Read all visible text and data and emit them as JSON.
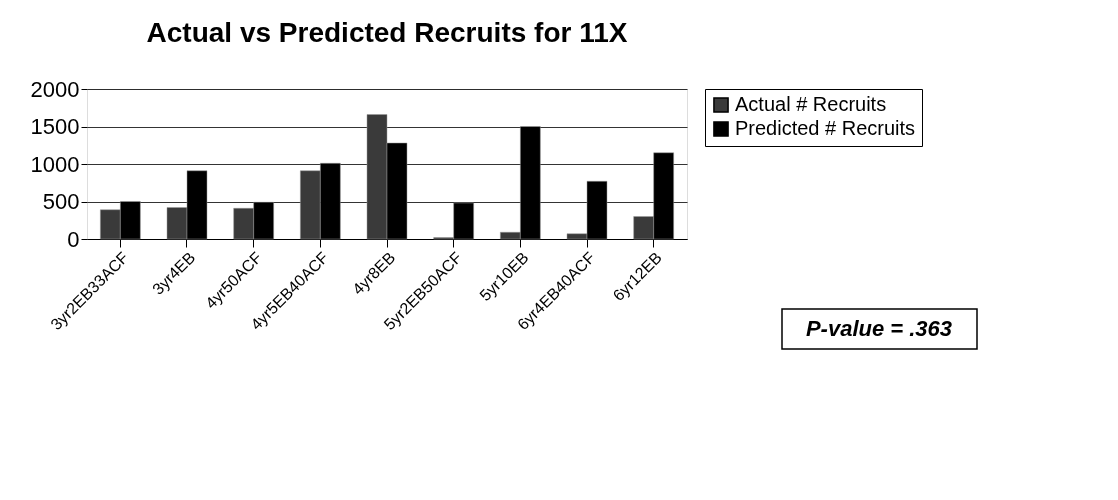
{
  "chart_data": {
    "type": "bar",
    "title": "Actual vs Predicted Recruits for 11X",
    "categories": [
      "3yr2EB33ACF",
      "3yr4EB",
      "4yr50ACF",
      "4yr5EB40ACF",
      "4yr8EB",
      "5yr2EB50ACF",
      "5yr10EB",
      "6yr4EB40ACF",
      "6yr12EB"
    ],
    "series": [
      {
        "name": "Actual # Recruits",
        "color": "#3a3a3a",
        "values": [
          390,
          420,
          410,
          910,
          1660,
          20,
          90,
          70,
          300
        ]
      },
      {
        "name": "Predicted # Recruits",
        "color": "#000000",
        "values": [
          500,
          910,
          490,
          1010,
          1280,
          480,
          1500,
          770,
          1150
        ]
      }
    ],
    "ylim": [
      0,
      2000
    ],
    "yticks": [
      0,
      500,
      1000,
      1500,
      2000
    ],
    "grid": "y",
    "legend": "right",
    "annotations": [
      "P-value = .363"
    ]
  }
}
